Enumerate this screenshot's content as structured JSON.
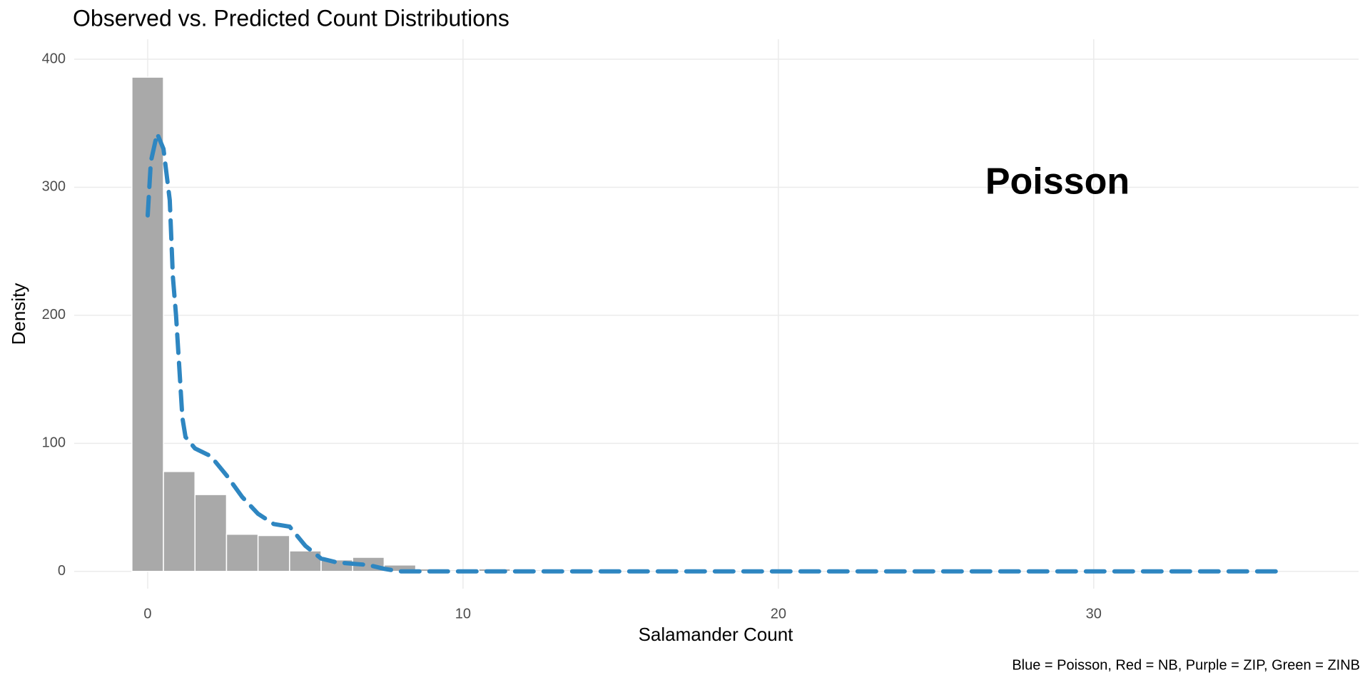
{
  "chart_data": {
    "type": "histogram",
    "title": "Observed vs. Predicted Count Distributions",
    "x_label": "Salamander Count",
    "y_label": "Density",
    "caption": "Blue = Poisson, Red = NB, Purple = ZIP, Green = ZINB",
    "annotation": "Poisson",
    "annotation_color": "#2E86C1",
    "bins": [
      -0.5,
      0.5,
      1.5,
      2.5,
      3.5,
      4.5,
      5.5,
      6.5,
      7.5,
      8.5,
      9.5,
      10.5,
      11.5,
      12.5,
      13.5
    ],
    "counts": [
      386,
      78,
      60,
      29,
      28,
      16,
      9,
      11,
      5,
      2,
      1,
      2,
      1,
      1
    ],
    "bar_color": "#a9a9a9",
    "curve": {
      "color": "#2E86C1",
      "x": [
        0,
        0.1,
        0.3,
        0.5,
        0.7,
        0.8,
        0.9,
        1.0,
        1.1,
        1.2,
        1.5,
        2,
        2.5,
        3,
        3.5,
        4,
        4.5,
        5,
        5.5,
        6,
        7,
        7.5,
        8,
        10,
        15,
        20,
        25,
        30,
        36
      ],
      "y": [
        278,
        320,
        342,
        330,
        290,
        230,
        200,
        160,
        120,
        105,
        96,
        90,
        75,
        58,
        45,
        37,
        35,
        20,
        10,
        7,
        5,
        2,
        0,
        0,
        0,
        0,
        0,
        0,
        0
      ]
    },
    "xlim": [
      -2.33,
      38.4
    ],
    "ylim": [
      -13.5,
      415.6
    ],
    "xticks": [
      0,
      10,
      20,
      30
    ],
    "yticks": [
      0,
      100,
      200,
      300,
      400
    ],
    "grid": true
  }
}
